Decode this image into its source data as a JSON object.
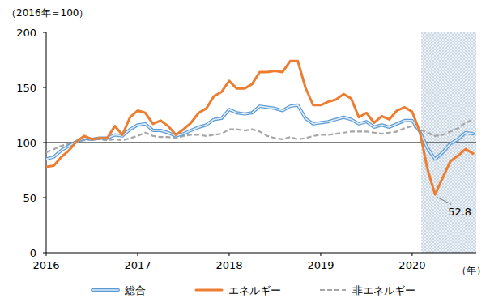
{
  "chart_data": {
    "type": "line",
    "y_label": "（2016年＝100）",
    "x_label": "（年）",
    "x": [
      2016.0,
      2016.083,
      2016.167,
      2016.25,
      2016.333,
      2016.417,
      2016.5,
      2016.583,
      2016.667,
      2016.75,
      2016.833,
      2016.917,
      2017.0,
      2017.083,
      2017.167,
      2017.25,
      2017.333,
      2017.417,
      2017.5,
      2017.583,
      2017.667,
      2017.75,
      2017.833,
      2017.917,
      2018.0,
      2018.083,
      2018.167,
      2018.25,
      2018.333,
      2018.417,
      2018.5,
      2018.583,
      2018.667,
      2018.75,
      2018.833,
      2018.917,
      2019.0,
      2019.083,
      2019.167,
      2019.25,
      2019.333,
      2019.417,
      2019.5,
      2019.583,
      2019.667,
      2019.75,
      2019.833,
      2019.917,
      2020.0,
      2020.083,
      2020.167,
      2020.25,
      2020.333,
      2020.417,
      2020.5,
      2020.583,
      2020.667
    ],
    "series": [
      {
        "name": "総合",
        "color": "#5b9bd5",
        "line_style": "double",
        "values": [
          85,
          87,
          93,
          97,
          101,
          104,
          103,
          104,
          104,
          107,
          106,
          112,
          116,
          117,
          111,
          111,
          109,
          106,
          108,
          111,
          114,
          116,
          121,
          122,
          130,
          127,
          126,
          127,
          133,
          132,
          131,
          129,
          133,
          134,
          122,
          117,
          118,
          119,
          121,
          123,
          121,
          117,
          119,
          114,
          116,
          114,
          117,
          120,
          120,
          110,
          95,
          85,
          91,
          99,
          103,
          109,
          108
        ]
      },
      {
        "name": "エネルギー",
        "color": "#ed7d31",
        "line_style": "solid",
        "values": [
          78,
          79,
          87,
          93,
          101,
          106,
          103,
          104,
          104,
          115,
          107,
          123,
          129,
          127,
          117,
          120,
          115,
          107,
          112,
          118,
          127,
          131,
          142,
          146,
          156,
          149,
          149,
          153,
          164,
          164,
          165,
          164,
          174,
          174,
          150,
          134,
          134,
          137,
          139,
          144,
          140,
          123,
          127,
          118,
          124,
          121,
          129,
          132,
          128,
          110,
          76,
          52.8,
          68,
          83,
          88,
          94,
          90
        ]
      },
      {
        "name": "非エネルギー",
        "color": "#a6a6a6",
        "line_style": "dashed",
        "values": [
          91,
          94,
          97,
          99,
          101,
          102,
          103,
          103,
          102,
          103,
          102,
          104,
          106,
          109,
          106,
          105,
          105,
          104,
          106,
          107,
          107,
          106,
          107,
          108,
          112,
          112,
          111,
          112,
          110,
          106,
          104,
          103,
          105,
          103,
          104,
          106,
          107,
          107,
          108,
          109,
          110,
          110,
          110,
          109,
          108,
          109,
          110,
          113,
          115,
          112,
          109,
          106,
          107,
          110,
          113,
          118,
          121
        ]
      }
    ],
    "xlim": [
      2016,
      2020.7
    ],
    "xticks": [
      2016,
      2017,
      2018,
      2019,
      2020
    ],
    "ylim": [
      0,
      200
    ],
    "yticks": [
      0,
      50,
      100,
      150,
      200
    ],
    "reference_line": 100,
    "shaded_range": [
      2020.1,
      2020.7
    ],
    "annotations": [
      {
        "text": "52.8",
        "x": 2020.25,
        "y": 52.8
      }
    ],
    "grid": false,
    "legend": "bottom"
  }
}
